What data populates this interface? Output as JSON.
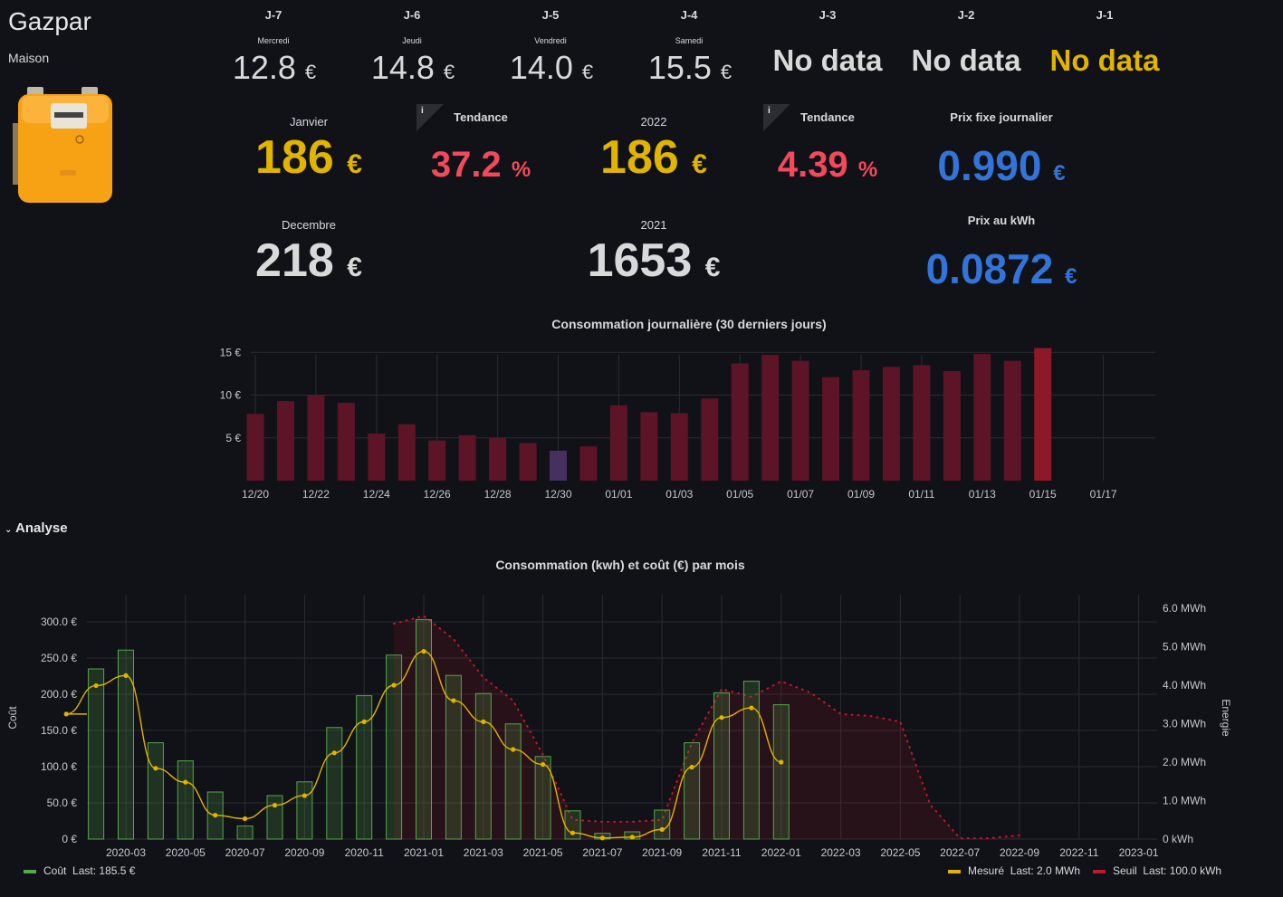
{
  "header": {
    "title": "Gazpar",
    "subtitle": "Maison"
  },
  "days": [
    {
      "label": "J-7",
      "day": "Mercredi",
      "value": "12.8",
      "unit": "€"
    },
    {
      "label": "J-6",
      "day": "Jeudi",
      "value": "14.8",
      "unit": "€"
    },
    {
      "label": "J-5",
      "day": "Vendredi",
      "value": "14.0",
      "unit": "€"
    },
    {
      "label": "J-4",
      "day": "Samedi",
      "value": "15.5",
      "unit": "€"
    },
    {
      "label": "J-3",
      "value": "No data"
    },
    {
      "label": "J-2",
      "value": "No data"
    },
    {
      "label": "J-1",
      "value": "No data"
    }
  ],
  "stats": {
    "janvier": {
      "title": "Janvier",
      "value": "186",
      "unit": "€",
      "color": "#e0b400"
    },
    "tendance1": {
      "title": "Tendance",
      "value": "37.2",
      "unit": "%",
      "color": "#f2495c"
    },
    "y2022": {
      "title": "2022",
      "value": "186",
      "unit": "€",
      "color": "#e0b400"
    },
    "tendance2": {
      "title": "Tendance",
      "value": "4.39",
      "unit": "%",
      "color": "#f2495c"
    },
    "prix_fixe": {
      "title": "Prix fixe journalier",
      "value": "0.990",
      "unit": "€",
      "color": "#3274d9"
    },
    "decembre": {
      "title": "Decembre",
      "value": "218",
      "unit": "€",
      "color": "#d8d9da"
    },
    "y2021": {
      "title": "2021",
      "value": "1653",
      "unit": "€",
      "color": "#d8d9da"
    },
    "prix_kwh": {
      "title": "Prix au kWh",
      "value": "0.0872",
      "unit": "€",
      "color": "#3274d9"
    }
  },
  "info_icon": "i",
  "colors": {
    "yellow": "#e0b400",
    "red": "#f2495c",
    "blue": "#3274d9",
    "green": "#56a64b",
    "bar_dark": "#5c1426",
    "bar_last": "#8c1828",
    "bar_purple": "#45305f",
    "crimson": "#c4162a"
  },
  "chart_data": [
    {
      "type": "bar",
      "title": "Consommation journalière (30 derniers jours)",
      "ylabel": "",
      "yticks": [
        "15 €",
        "10 €",
        "5 €"
      ],
      "xticks": [
        "12/20",
        "12/22",
        "12/24",
        "12/26",
        "12/28",
        "12/30",
        "01/01",
        "01/03",
        "01/05",
        "01/07",
        "01/09",
        "01/11",
        "01/13",
        "01/15",
        "01/17"
      ],
      "ylim": [
        0,
        16
      ],
      "categories": [
        "12/20",
        "12/21",
        "12/22",
        "12/23",
        "12/24",
        "12/25",
        "12/26",
        "12/27",
        "12/28",
        "12/29",
        "12/30",
        "12/31",
        "01/01",
        "01/02",
        "01/03",
        "01/04",
        "01/05",
        "01/06",
        "01/07",
        "01/08",
        "01/09",
        "01/10",
        "01/11",
        "01/12",
        "01/13",
        "01/14",
        "01/15"
      ],
      "values": [
        7.8,
        9.3,
        10.0,
        9.1,
        5.5,
        6.6,
        4.7,
        5.3,
        5.0,
        4.4,
        3.5,
        4.0,
        8.8,
        8.0,
        7.9,
        9.6,
        13.7,
        14.7,
        14.0,
        12.1,
        12.9,
        13.3,
        13.5,
        12.8,
        14.8,
        14.0,
        15.5
      ],
      "grid": true
    },
    {
      "type": "bar",
      "title": "Consommation (kwh) et coût (€) par mois",
      "ylabel": "Coût",
      "y2label": "Energie",
      "yticks": [
        "300.0 €",
        "250.0 €",
        "200.0 €",
        "150.0 €",
        "100.0 €",
        "50.0 €",
        "0 €"
      ],
      "y2ticks": [
        "6.0 MWh",
        "5.0 MWh",
        "4.0 MWh",
        "3.0 MWh",
        "2.0 MWh",
        "1.0 MWh",
        "0 kWh"
      ],
      "xticks": [
        "2020-03",
        "2020-05",
        "2020-07",
        "2020-09",
        "2020-11",
        "2021-01",
        "2021-03",
        "2021-05",
        "2021-07",
        "2021-09",
        "2021-11",
        "2022-01",
        "2022-03",
        "2022-05",
        "2022-07",
        "2022-09",
        "2022-11",
        "2023-01"
      ],
      "ylim": [
        0,
        300
      ],
      "y2lim": [
        0,
        6
      ],
      "grid": true,
      "legend_left": [
        {
          "name": "Coût",
          "last_label": "Last:",
          "last": "185.5 €"
        }
      ],
      "legend_right": [
        {
          "name": "Mesuré",
          "last_label": "Last:",
          "last": "2.0 MWh"
        },
        {
          "name": "Seuil",
          "last_label": "Last:",
          "last": "100.0 kWh"
        }
      ],
      "series": [
        {
          "name": "Coût",
          "kind": "bar",
          "color": "#56a64b",
          "x": [
            "2020-02",
            "2020-03",
            "2020-04",
            "2020-05",
            "2020-06",
            "2020-07",
            "2020-08",
            "2020-09",
            "2020-10",
            "2020-11",
            "2020-12",
            "2021-01",
            "2021-02",
            "2021-03",
            "2021-04",
            "2021-05",
            "2021-06",
            "2021-07",
            "2021-08",
            "2021-09",
            "2021-10",
            "2021-11",
            "2021-12",
            "2022-01"
          ],
          "values": [
            235,
            261,
            133,
            108,
            65,
            18,
            60,
            79,
            154,
            198,
            254,
            303,
            226,
            201,
            159,
            114,
            39,
            8,
            10,
            40,
            133,
            202,
            218,
            185.5
          ]
        },
        {
          "name": "Mesuré",
          "kind": "line",
          "color": "#e0b400",
          "unit": "MWh",
          "x": [
            "2020-01",
            "2020-02",
            "2020-03",
            "2020-04",
            "2020-05",
            "2020-06",
            "2020-07",
            "2020-08",
            "2020-09",
            "2020-10",
            "2020-11",
            "2020-12",
            "2021-01",
            "2021-02",
            "2021-03",
            "2021-04",
            "2021-05",
            "2021-06",
            "2021-07",
            "2021-08",
            "2021-09",
            "2021-10",
            "2021-11",
            "2021-12",
            "2022-01"
          ],
          "values": [
            3.25,
            3.99,
            4.25,
            1.84,
            1.48,
            0.62,
            0.53,
            0.88,
            1.13,
            2.24,
            3.05,
            4.0,
            4.88,
            3.6,
            3.05,
            2.33,
            1.94,
            0.16,
            0.03,
            0.05,
            0.25,
            1.87,
            3.16,
            3.41,
            2.0
          ]
        },
        {
          "name": "Seuil",
          "kind": "dotted-area",
          "color": "#c4162a",
          "unit": "MWh",
          "x": [
            "2020-12",
            "2021-01",
            "2021-02",
            "2021-03",
            "2021-04",
            "2021-05",
            "2021-06",
            "2021-07",
            "2021-08",
            "2021-09",
            "2021-10",
            "2021-11",
            "2021-12",
            "2022-01",
            "2022-02",
            "2022-03",
            "2022-04",
            "2022-05",
            "2022-06",
            "2022-07",
            "2022-08",
            "2022-09"
          ],
          "values": [
            5.6,
            5.8,
            5.2,
            4.2,
            3.6,
            2.2,
            0.5,
            0.45,
            0.45,
            0.5,
            2.5,
            3.9,
            3.7,
            4.1,
            3.8,
            3.25,
            3.2,
            3.05,
            0.9,
            0.02,
            0.02,
            0.1
          ]
        }
      ]
    }
  ]
}
